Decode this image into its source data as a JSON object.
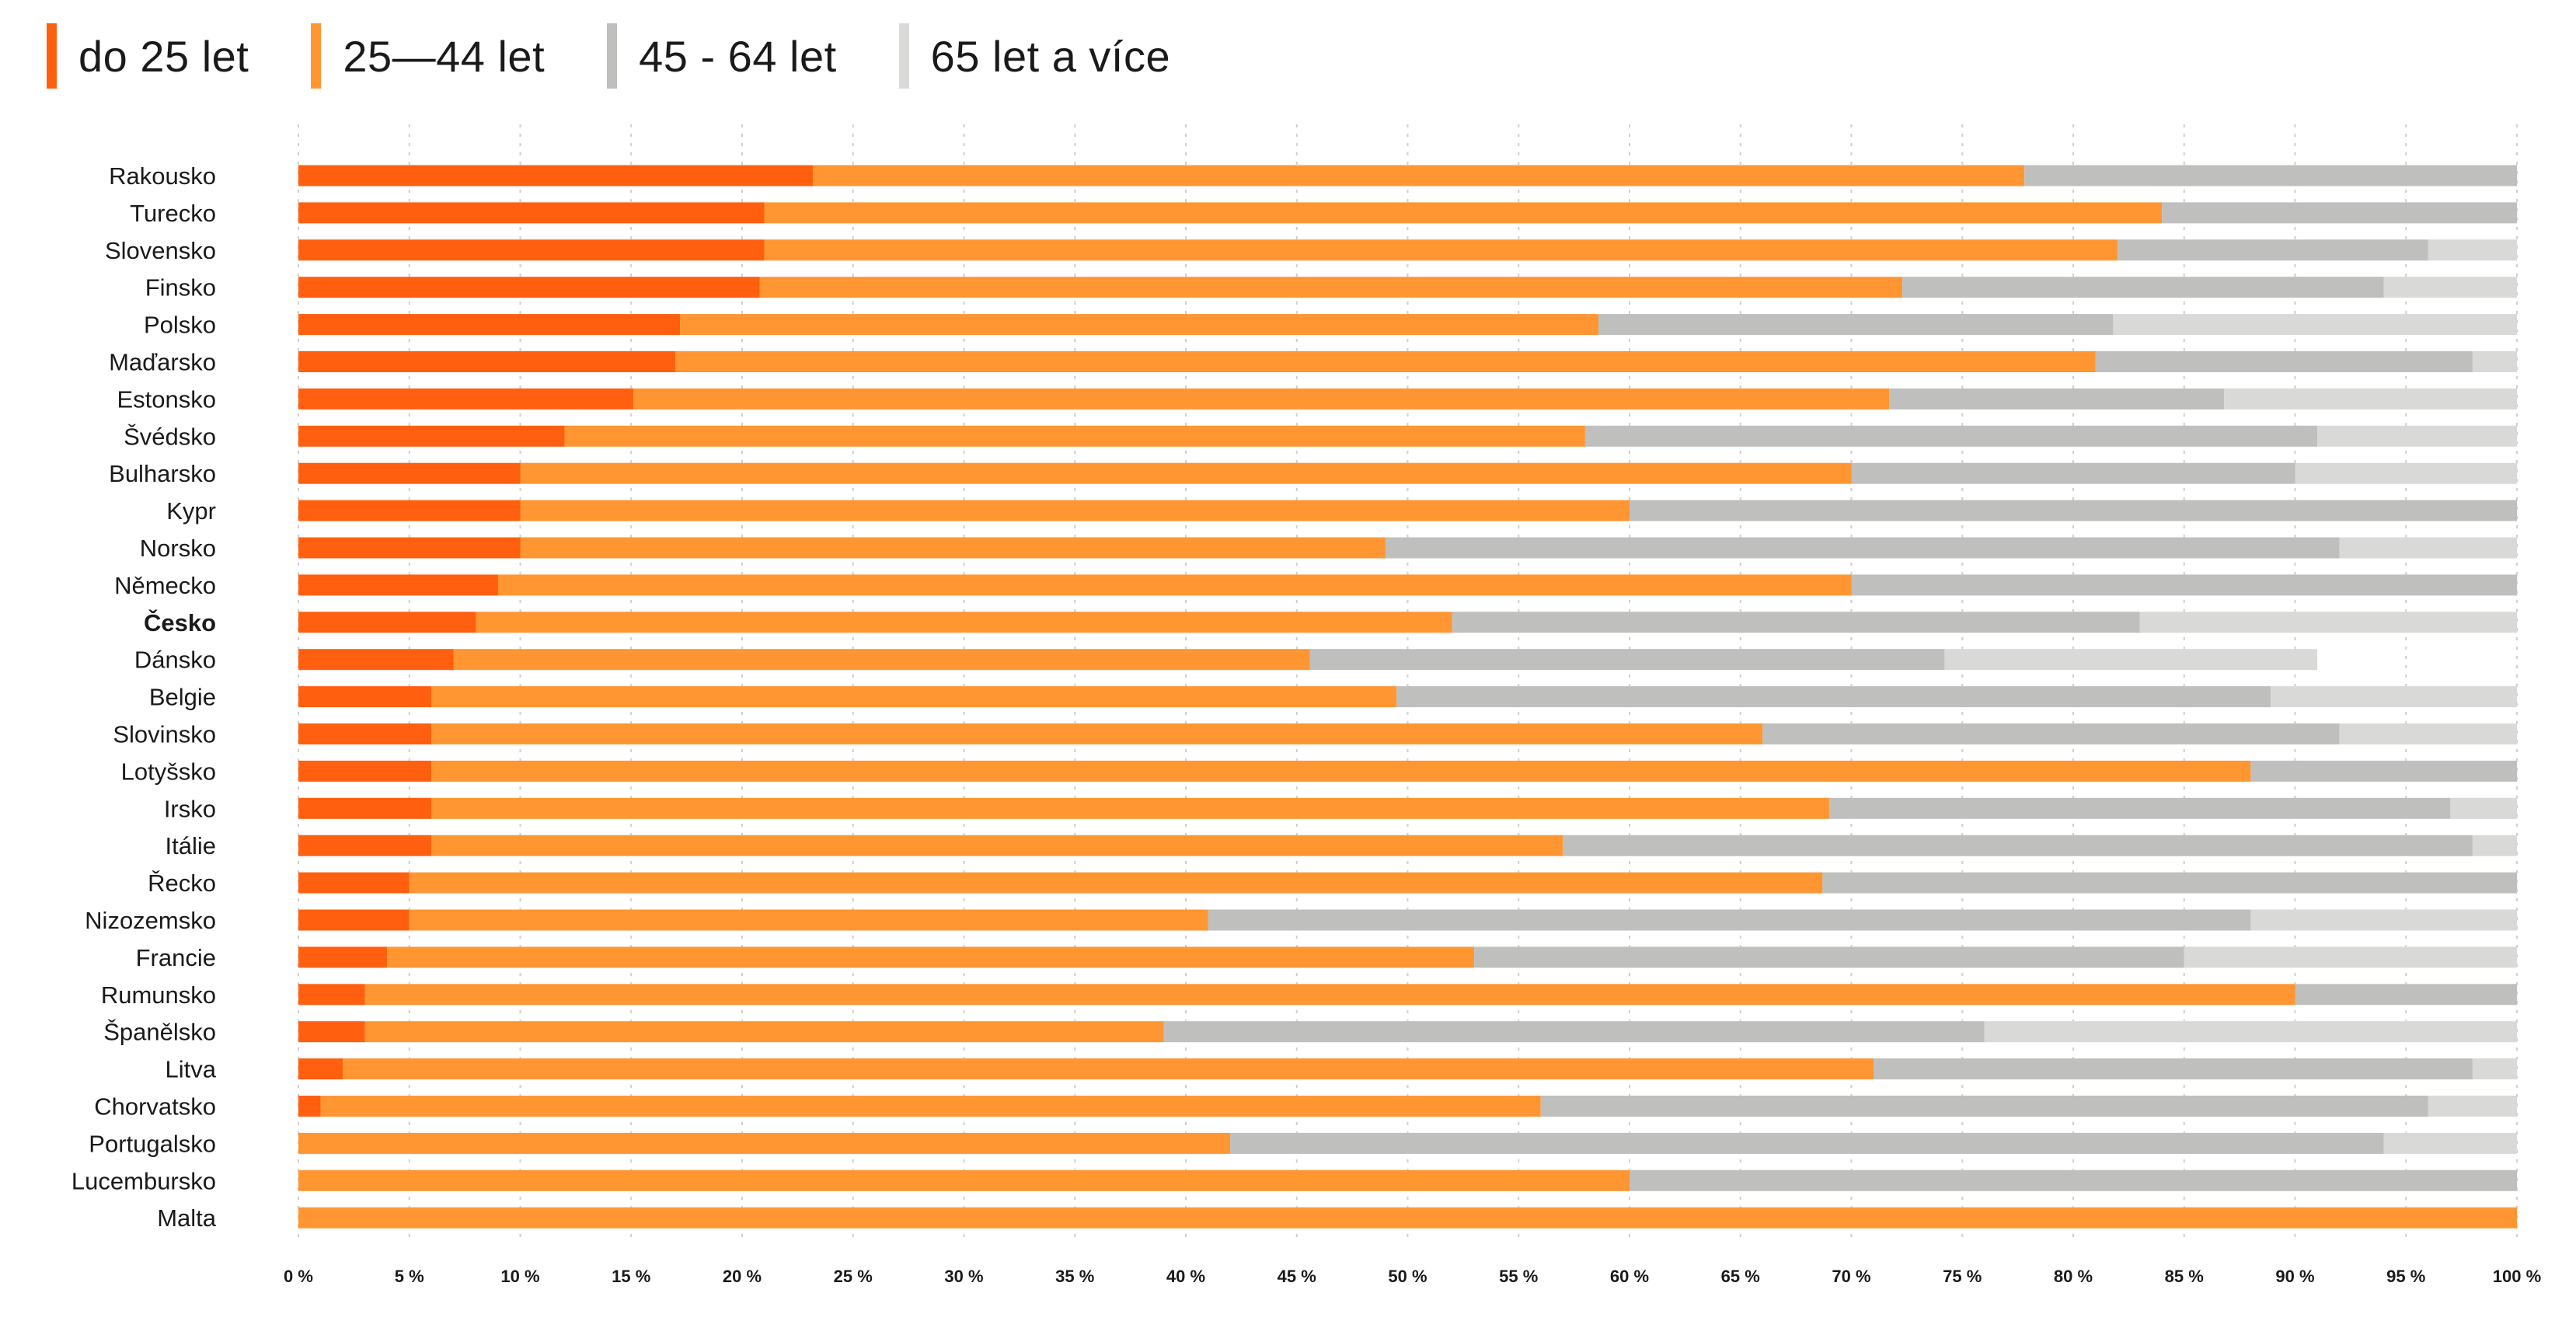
{
  "chart_data": {
    "type": "bar",
    "orientation": "horizontal",
    "stacked": true,
    "grid": true,
    "legend_position": "top-left",
    "xlim": [
      0,
      100
    ],
    "x_ticks": [
      "0 %",
      "5 %",
      "10 %",
      "15 %",
      "20 %",
      "25 %",
      "30 %",
      "35 %",
      "40 %",
      "45 %",
      "50 %",
      "55 %",
      "60 %",
      "65 %",
      "70 %",
      "75 %",
      "80 %",
      "85 %",
      "90 %",
      "95 %",
      "100 %"
    ],
    "categories": [
      "Rakousko",
      "Turecko",
      "Slovensko",
      "Finsko",
      "Polsko",
      "Maďarsko",
      "Estonsko",
      "Švédsko",
      "Bulharsko",
      "Kypr",
      "Norsko",
      "Německo",
      "Česko",
      "Dánsko",
      "Belgie",
      "Slovinsko",
      "Lotyšsko",
      "Irsko",
      "Itálie",
      "Řecko",
      "Nizozemsko",
      "Francie",
      "Rumunsko",
      "Španělsko",
      "Litva",
      "Chorvatsko",
      "Portugalsko",
      "Lucembursko",
      "Malta"
    ],
    "highlight_category": "Česko",
    "series": [
      {
        "name": "do 25 let",
        "color": "#ff5f0f",
        "values": [
          23.2,
          21,
          21,
          20.8,
          17.2,
          17,
          15.1,
          12,
          10,
          10,
          10,
          9,
          8,
          7,
          6,
          6,
          6,
          6,
          6,
          5,
          5,
          4,
          3,
          3,
          2,
          1,
          0,
          0,
          0
        ]
      },
      {
        "name": "25—44 let",
        "color": "#ff9632",
        "values": [
          54.6,
          63,
          61,
          51.5,
          41.4,
          64,
          56.6,
          46,
          60,
          50,
          39,
          61,
          44,
          38.6,
          43.5,
          60,
          82,
          63,
          51,
          63.7,
          36,
          49,
          87,
          36,
          69,
          55,
          42,
          60,
          100
        ]
      },
      {
        "name": "45 - 64 let",
        "color": "#bfbfbd",
        "values": [
          22.2,
          16,
          14,
          21.7,
          23.2,
          17,
          15.1,
          33,
          20,
          40,
          43,
          30,
          31,
          28.6,
          39.4,
          26,
          12,
          28,
          41,
          31.3,
          47,
          32,
          10,
          37,
          27,
          40,
          52,
          40,
          0
        ]
      },
      {
        "name": "65 let a více",
        "color": "#d9d9d8",
        "values": [
          0,
          0,
          4,
          6,
          18.2,
          2,
          13.2,
          9,
          10,
          0,
          8,
          0,
          17,
          16.8,
          11.1,
          8,
          0,
          3,
          2,
          0,
          12,
          15,
          0,
          24,
          2,
          4,
          6,
          0,
          0
        ]
      }
    ]
  }
}
